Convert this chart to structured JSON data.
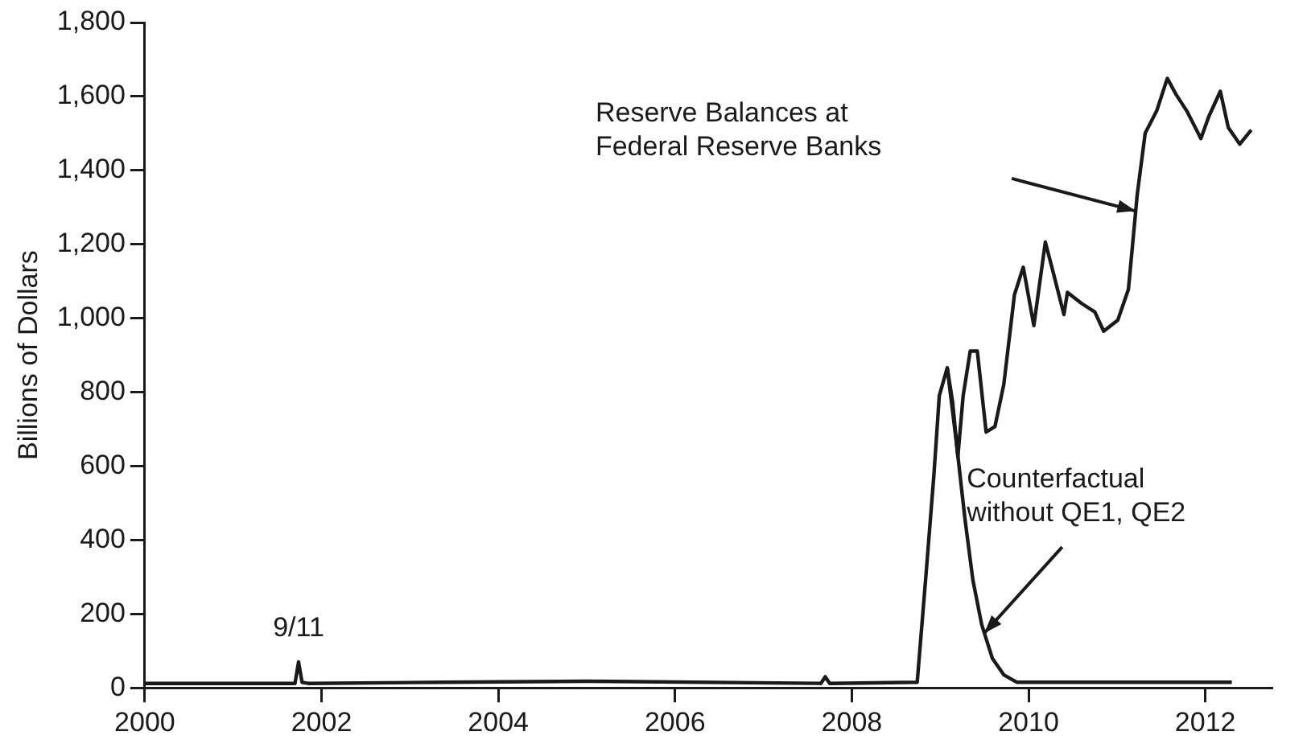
{
  "chart_data": {
    "type": "line",
    "ylabel": "Billions of Dollars",
    "xlim": [
      2000,
      2012.75
    ],
    "xticks": [
      {
        "value": 2000,
        "label": "2000"
      },
      {
        "value": 2002,
        "label": "2002"
      },
      {
        "value": 2004,
        "label": "2004"
      },
      {
        "value": 2006,
        "label": "2006"
      },
      {
        "value": 2008,
        "label": "2008"
      },
      {
        "value": 2010,
        "label": "2010"
      },
      {
        "value": 2012,
        "label": "2012"
      }
    ],
    "ylim": [
      0,
      1800
    ],
    "yticks": [
      0,
      200,
      400,
      600,
      800,
      {
        "value": 1000,
        "label": "1,000"
      },
      {
        "value": 1200,
        "label": "1,200"
      },
      {
        "value": 1400,
        "label": "1,400"
      },
      {
        "value": 1600,
        "label": "1,600"
      },
      {
        "value": 1800,
        "label": "1,800"
      }
    ],
    "grid": false,
    "legend": false,
    "marker": "none",
    "line_style": "solid",
    "series": [
      {
        "color": "#1a1a1a",
        "x": [
          2000,
          2001.7,
          2001.74,
          2001.78,
          2001.85,
          2003.4,
          2005,
          2007.65,
          2007.7,
          2007.75,
          2008.74,
          2008.84,
          2008.93,
          2008.99,
          2009.08,
          2009.14,
          2009.2,
          2009.26,
          2009.34,
          2009.42,
          2009.52,
          2009.62,
          2009.72,
          2009.84,
          2009.94,
          2010.06,
          2010.19,
          2010.28,
          2010.4,
          2010.44,
          2010.6,
          2010.75,
          2010.85,
          2011.01,
          2011.13,
          2011.23,
          2011.32,
          2011.45,
          2011.57,
          2011.67,
          2011.79,
          2011.95,
          2012.04,
          2012.17,
          2012.26,
          2012.39,
          2012.52
        ],
        "values": [
          12,
          12,
          70,
          15,
          12,
          15,
          18,
          12,
          30,
          12,
          15,
          307,
          579,
          790,
          866,
          775,
          626,
          790,
          911,
          911,
          692,
          707,
          821,
          1063,
          1138,
          980,
          1206,
          1123,
          1010,
          1070,
          1040,
          1017,
          965,
          995,
          1078,
          1335,
          1501,
          1561,
          1649,
          1605,
          1561,
          1486,
          1546,
          1614,
          1516,
          1471,
          1509
        ]
      },
      {
        "color": "#1a1a1a",
        "x": [
          2009.08,
          2009.18,
          2009.28,
          2009.37,
          2009.47,
          2009.59,
          2009.72,
          2009.87,
          2012.3
        ],
        "values": [
          866,
          671,
          458,
          292,
          171,
          80,
          35,
          15,
          15
        ]
      }
    ],
    "annotations": [
      {
        "text": "9/11",
        "x": 2001.74,
        "y": 70
      },
      "Reserve Balances at\nFederal Reserve Banks",
      {
        "text": "Counterfactual\nwithout QE1, QE2",
        "x": 2009.5,
        "y": 148
      }
    ]
  }
}
